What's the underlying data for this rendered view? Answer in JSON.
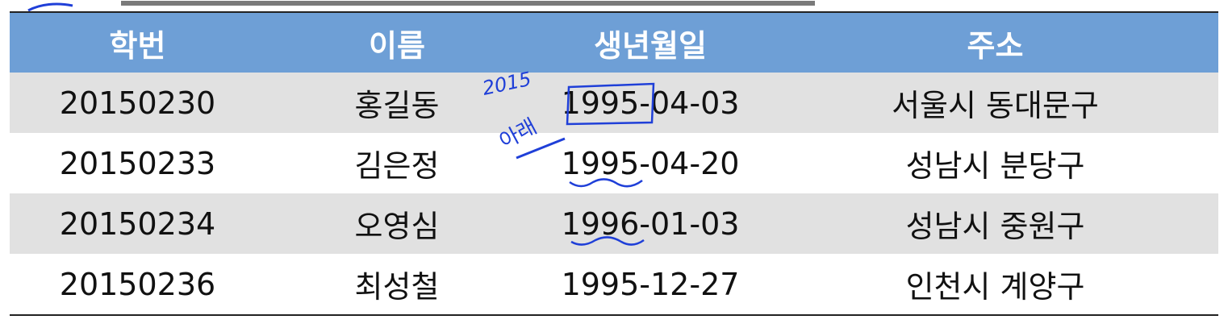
{
  "table": {
    "headers": [
      "학번",
      "이름",
      "생년월일",
      "주소"
    ],
    "rows": [
      [
        "20150230",
        "홍길동",
        "1995-04-03",
        "서울시 동대문구"
      ],
      [
        "20150233",
        "김은정",
        "1995-04-20",
        "성남시 분당구"
      ],
      [
        "20150234",
        "오영심",
        "1996-01-03",
        "성남시 중원구"
      ],
      [
        "20150236",
        "최성철",
        "1995-12-27",
        "인천시 계양구"
      ]
    ]
  },
  "annotations": {
    "ink_color": "#1f3fd8",
    "note_year": "2015",
    "note_word": "아래"
  },
  "colors": {
    "header_bg": "#6e9fd6",
    "row_shade": "#e1e1e1"
  }
}
